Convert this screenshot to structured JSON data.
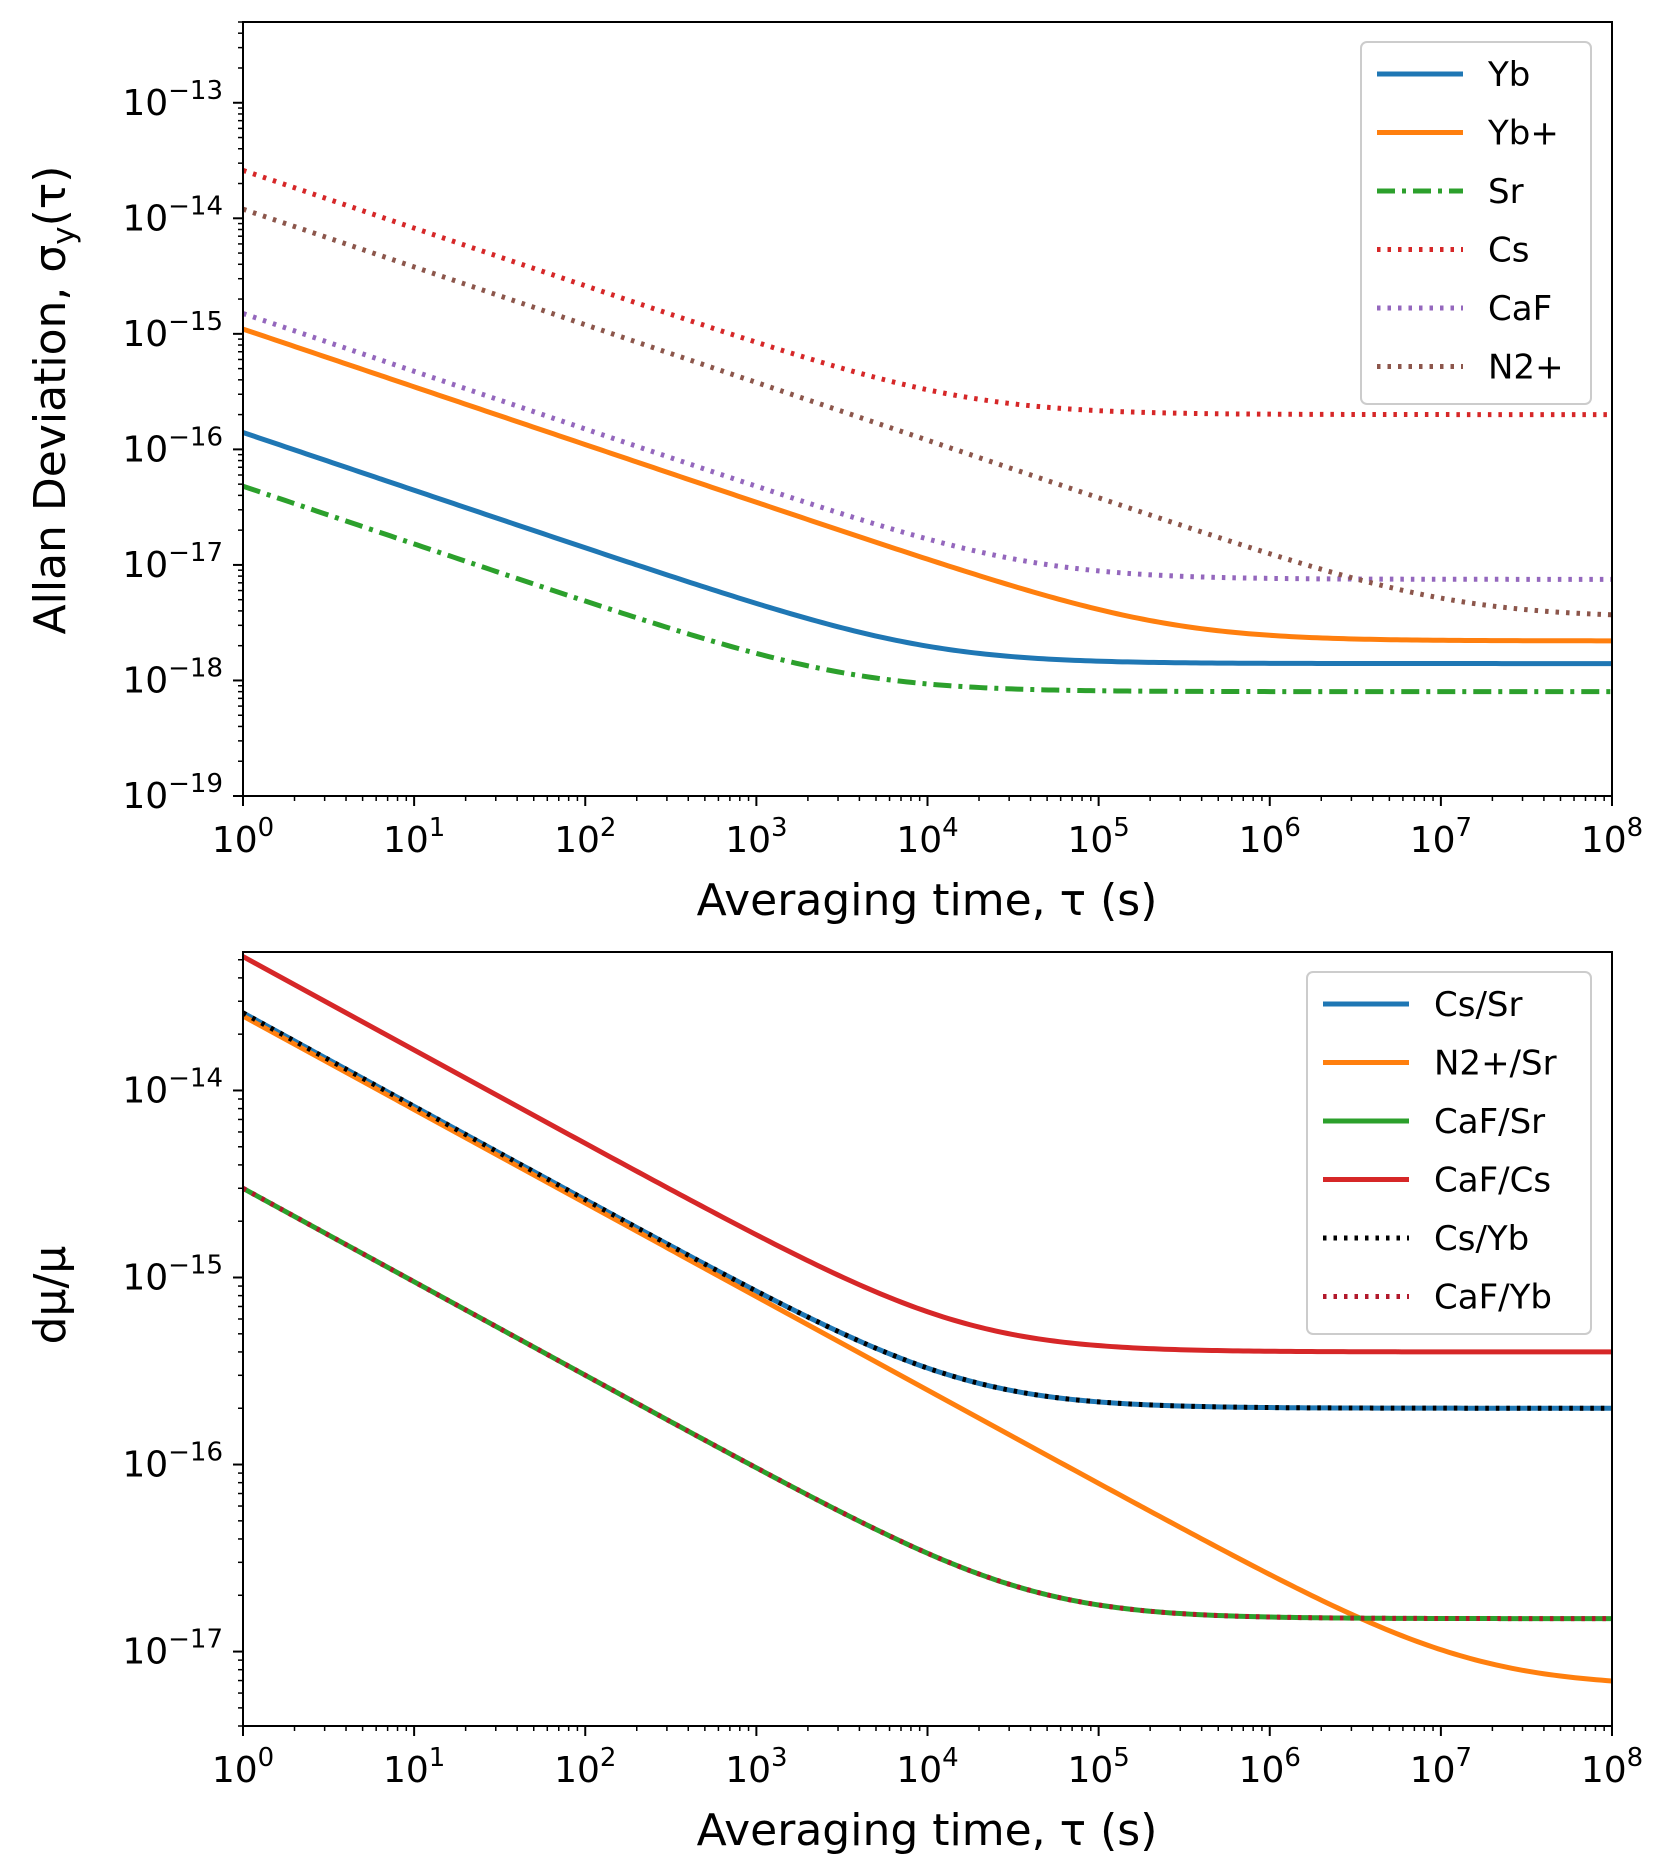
{
  "chart_data": [
    {
      "type": "line",
      "scale": "log-log",
      "xlabel": "Averaging time, τ (s)",
      "ylabel": "Allan Deviation, σy(τ)",
      "xlim": [
        1,
        100000000.0
      ],
      "ylim": [
        1e-19,
        5e-13
      ],
      "x_ticks": [
        0,
        1,
        2,
        3,
        4,
        5,
        6,
        7,
        8
      ],
      "y_ticks": [
        -19,
        -18,
        -17,
        -16,
        -15,
        -14,
        -13
      ],
      "y_tick_base": "10",
      "legend_position": "top-right",
      "series": [
        {
          "name": "Yb",
          "color": "#1f77b4",
          "style": "solid",
          "a": 1.4e-16,
          "floor": 1.4e-18
        },
        {
          "name": "Yb+",
          "color": "#ff7f0e",
          "style": "solid",
          "a": 1.1e-15,
          "floor": 2.2e-18
        },
        {
          "name": "Sr",
          "color": "#2ca02c",
          "style": "dashdot",
          "a": 4.8e-17,
          "floor": 8e-19
        },
        {
          "name": "Cs",
          "color": "#d62728",
          "style": "dotted",
          "a": 2.6e-14,
          "floor": 2e-16
        },
        {
          "name": "CaF",
          "color": "#9467bd",
          "style": "dotted",
          "a": 1.5e-15,
          "floor": 7.5e-18
        },
        {
          "name": "N2+",
          "color": "#8c564b",
          "style": "dotted",
          "a": 1.2e-14,
          "floor": 3.5e-18
        }
      ]
    },
    {
      "type": "line",
      "scale": "log-log",
      "xlabel": "Averaging time, τ (s)",
      "ylabel": "dμ/μ",
      "xlim": [
        1,
        100000000.0
      ],
      "ylim": [
        4e-18,
        5.5e-14
      ],
      "x_ticks": [
        0,
        1,
        2,
        3,
        4,
        5,
        6,
        7,
        8
      ],
      "y_ticks": [
        -17,
        -16,
        -15,
        -14
      ],
      "y_tick_base": "10",
      "legend_position": "top-right",
      "series": [
        {
          "name": "Cs/Sr",
          "color": "#1f77b4",
          "style": "solid",
          "a": 2.6e-14,
          "floor": 2e-16
        },
        {
          "name": "N2+/Sr",
          "color": "#ff7f0e",
          "style": "solid",
          "a": 2.5e-14,
          "floor": 6.5e-18
        },
        {
          "name": "CaF/Sr",
          "color": "#2ca02c",
          "style": "solid",
          "a": 3e-15,
          "floor": 1.5e-17
        },
        {
          "name": "CaF/Cs",
          "color": "#d62728",
          "style": "solid",
          "a": 5.2e-14,
          "floor": 4e-16
        },
        {
          "name": "Cs/Yb",
          "color": "#000000",
          "style": "dotted",
          "a": 2.6e-14,
          "floor": 2e-16
        },
        {
          "name": "CaF/Yb",
          "color": "#b2182b",
          "style": "dotted",
          "a": 3e-15,
          "floor": 1.5e-17
        }
      ]
    }
  ]
}
